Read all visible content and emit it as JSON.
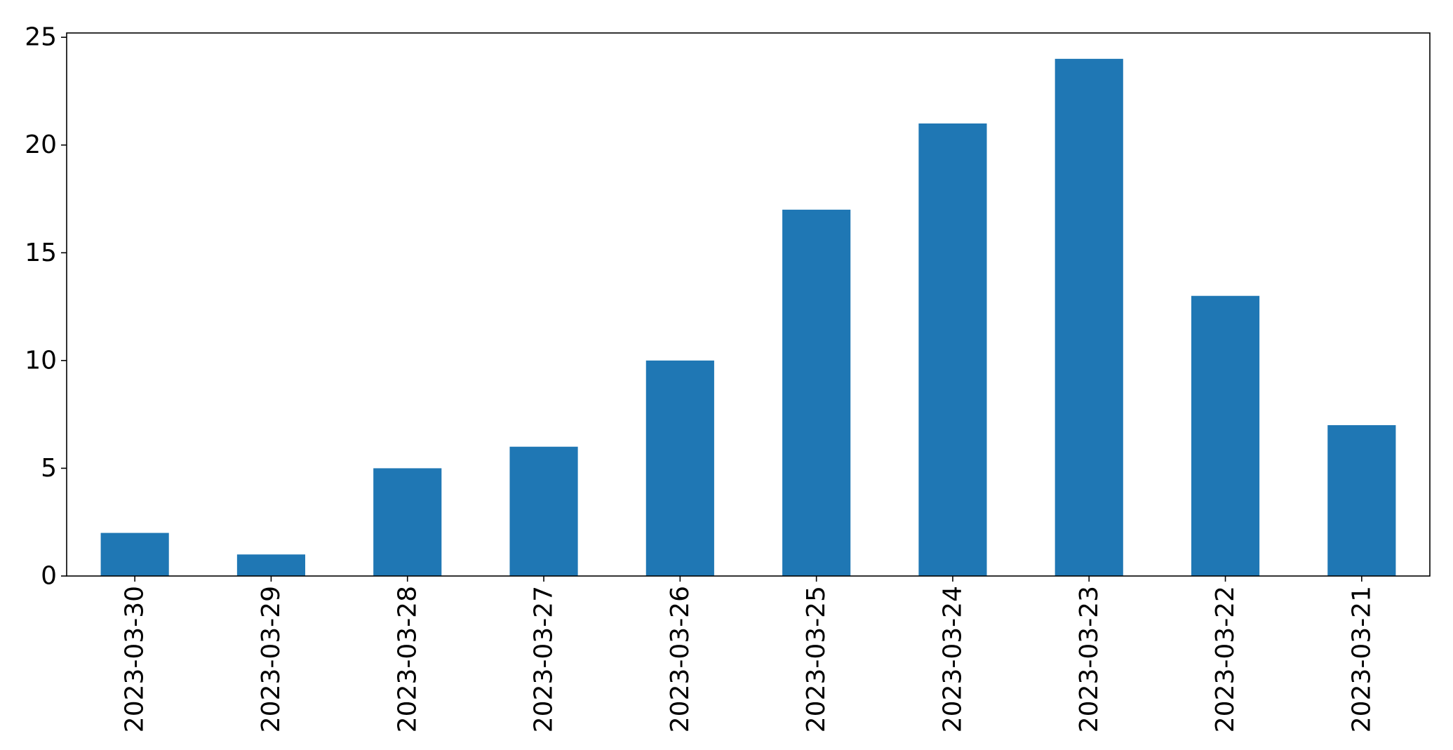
{
  "chart_data": {
    "type": "bar",
    "categories": [
      "2023-03-30",
      "2023-03-29",
      "2023-03-28",
      "2023-03-27",
      "2023-03-26",
      "2023-03-25",
      "2023-03-24",
      "2023-03-23",
      "2023-03-22",
      "2023-03-21"
    ],
    "values": [
      2,
      1,
      5,
      6,
      10,
      17,
      21,
      24,
      13,
      7
    ],
    "ylim": [
      0,
      25.2
    ],
    "yticks": [
      0,
      5,
      10,
      15,
      20,
      25
    ],
    "xlabel": "",
    "ylabel": "",
    "grid": false,
    "legend": false,
    "colors": {
      "bar": "#1f77b4",
      "axis": "#000000"
    }
  }
}
